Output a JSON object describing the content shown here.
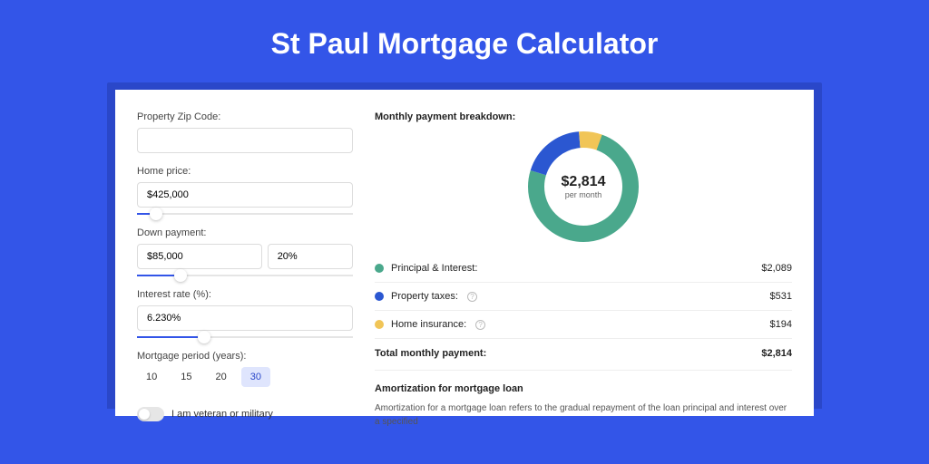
{
  "page": {
    "title": "St Paul Mortgage Calculator",
    "background_color": "#3355e8",
    "shadow_color": "#2a47c9",
    "card_color": "#ffffff"
  },
  "form": {
    "zip": {
      "label": "Property Zip Code:",
      "value": ""
    },
    "home_price": {
      "label": "Home price:",
      "value": "$425,000",
      "slider_pct": 9
    },
    "down_payment": {
      "label": "Down payment:",
      "amount": "$85,000",
      "percent": "20%",
      "slider_pct": 20
    },
    "interest": {
      "label": "Interest rate (%):",
      "value": "6.230%",
      "slider_pct": 31
    },
    "period": {
      "label": "Mortgage period (years):",
      "options": [
        "10",
        "15",
        "20",
        "30"
      ],
      "selected_index": 3
    },
    "veteran": {
      "label": "I am veteran or military",
      "checked": false
    }
  },
  "breakdown": {
    "title": "Monthly payment breakdown:",
    "total": "$2,814",
    "per_month": "per month",
    "donut": {
      "size": 122,
      "stroke": 18,
      "segments": [
        {
          "key": "principal_interest",
          "color": "#4aa88c",
          "fraction": 0.743
        },
        {
          "key": "property_taxes",
          "color": "#2b57d1",
          "fraction": 0.189
        },
        {
          "key": "home_insurance",
          "color": "#f1c557",
          "fraction": 0.069
        }
      ],
      "rotation_offset": 0.054
    },
    "rows": [
      {
        "label": "Principal & Interest:",
        "value": "$2,089",
        "color": "#4aa88c",
        "help": false
      },
      {
        "label": "Property taxes:",
        "value": "$531",
        "color": "#2b57d1",
        "help": true
      },
      {
        "label": "Home insurance:",
        "value": "$194",
        "color": "#f1c557",
        "help": true
      }
    ],
    "total_label": "Total monthly payment:",
    "total_value": "$2,814"
  },
  "amortization": {
    "title": "Amortization for mortgage loan",
    "body": "Amortization for a mortgage loan refers to the gradual repayment of the loan principal and interest over a specified"
  }
}
